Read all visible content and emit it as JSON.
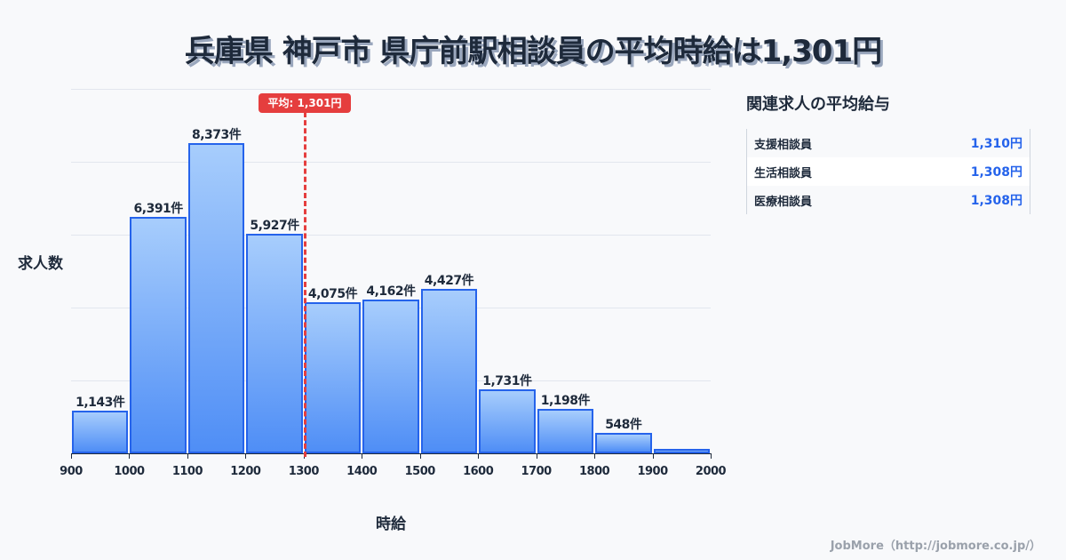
{
  "title": "兵庫県 神戸市 県庁前駅相談員の平均時給は1,301円",
  "average_badge": "平均: 1,301円",
  "y_axis_label": "求人数",
  "x_axis_label": "時給",
  "side_panel": {
    "title": "関連求人の平均給与",
    "rows": [
      {
        "name": "支援相談員",
        "value": "1,310円"
      },
      {
        "name": "生活相談員",
        "value": "1,308円"
      },
      {
        "name": "医療相談員",
        "value": "1,308円"
      }
    ]
  },
  "footer": "JobMore（http://jobmore.co.jp/）",
  "colors": {
    "bar_fill_top": "#a7cdfc",
    "bar_fill_bottom": "#4f8ef6",
    "bar_border": "#2563eb",
    "average_line": "#e53e3e",
    "accent_value": "#2563eb"
  },
  "chart_data": {
    "type": "bar",
    "title": "兵庫県 神戸市 県庁前駅相談員の平均時給は1,301円",
    "xlabel": "時給",
    "ylabel": "求人数",
    "categories": [
      "900-1000",
      "1000-1100",
      "1100-1200",
      "1200-1300",
      "1300-1400",
      "1400-1500",
      "1500-1600",
      "1600-1700",
      "1700-1800",
      "1800-1900",
      "1900-2000"
    ],
    "x_ticks": [
      "900",
      "1000",
      "1100",
      "1200",
      "1300",
      "1400",
      "1500",
      "1600",
      "1700",
      "1800",
      "1900",
      "2000"
    ],
    "values": [
      1143,
      6391,
      8373,
      5927,
      4075,
      4162,
      4427,
      1731,
      1198,
      548,
      120
    ],
    "labels": [
      "1,143件",
      "6,391件",
      "8,373件",
      "5,927件",
      "4,075件",
      "4,162件",
      "4,427件",
      "1,731件",
      "1,198件",
      "548件",
      ""
    ],
    "average": {
      "value": 1301,
      "label": "平均: 1,301円"
    },
    "xlim": [
      900,
      2000
    ],
    "ylim": [
      0,
      9836
    ],
    "grid": true,
    "legend": "none"
  }
}
